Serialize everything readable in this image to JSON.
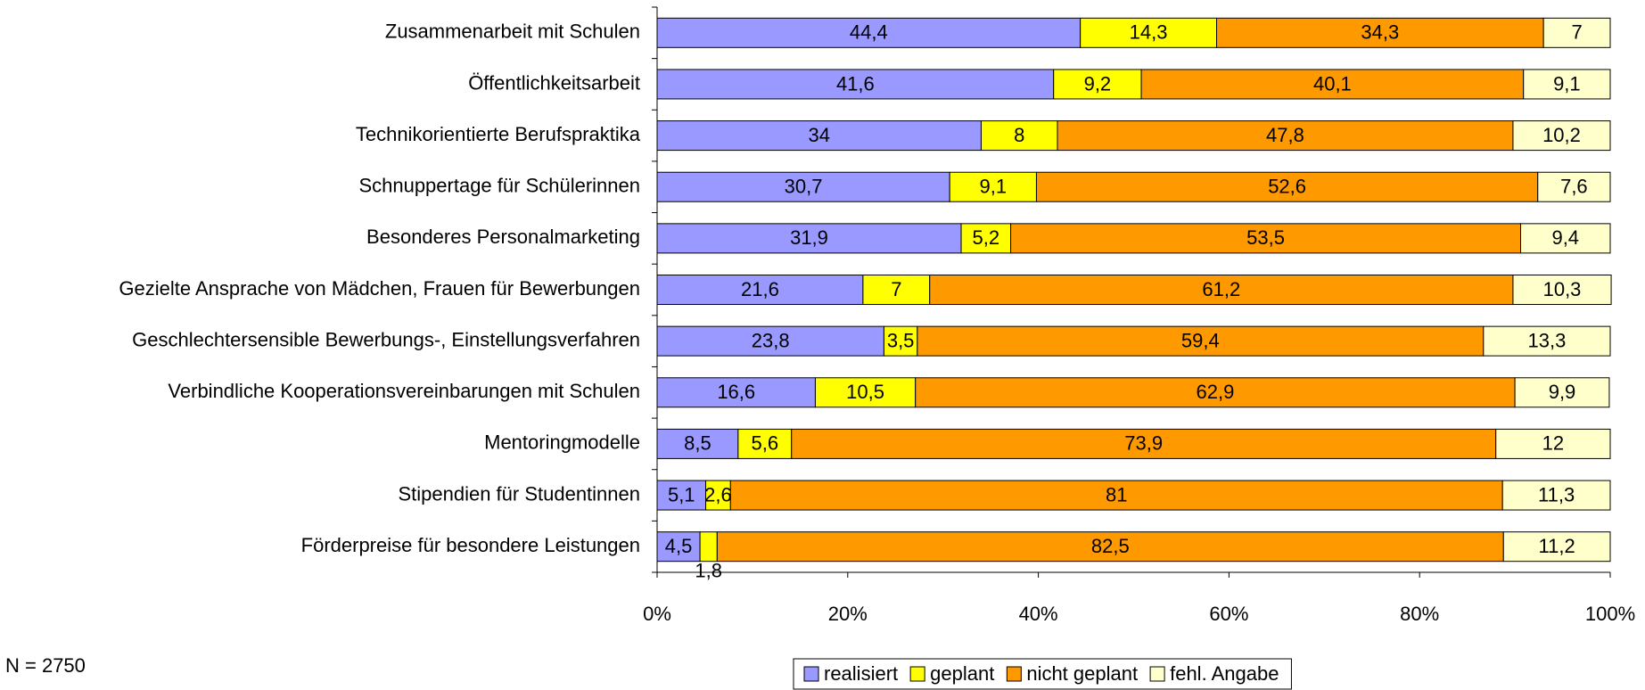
{
  "chart_data": {
    "type": "stacked_bar_horizontal",
    "categories": [
      "Zusammenarbeit mit Schulen",
      "Öffentlichkeitsarbeit",
      "Technikorientierte Berufspraktika",
      "Schnuppertage für Schülerinnen",
      "Besonderes Personalmarketing",
      "Gezielte Ansprache von Mädchen, Frauen für Bewerbungen",
      "Geschlechtersensible Bewerbungs-, Einstellungsverfahren",
      "Verbindliche Kooperationsvereinbarungen mit Schulen",
      "Mentoringmodelle",
      "Stipendien für Studentinnen",
      "Förderpreise für besondere Leistungen"
    ],
    "series": [
      {
        "name": "realisiert",
        "color": "#9999ff",
        "values": [
          44.4,
          41.6,
          34,
          30.7,
          31.9,
          21.6,
          23.8,
          16.6,
          8.5,
          5.1,
          4.5
        ],
        "value_labels": [
          "44,4",
          "41,6",
          "34",
          "30,7",
          "31,9",
          "21,6",
          "23,8",
          "16,6",
          "8,5",
          "5,1",
          "4,5"
        ]
      },
      {
        "name": "geplant",
        "color": "#ffff00",
        "values": [
          14.3,
          9.2,
          8,
          9.1,
          5.2,
          7,
          3.5,
          10.5,
          5.6,
          2.6,
          1.8
        ],
        "value_labels": [
          "14,3",
          "9,2",
          "8",
          "9,1",
          "5,2",
          "7",
          "3,5",
          "10,5",
          "5,6",
          "2,6",
          "1,8"
        ]
      },
      {
        "name": "nicht geplant",
        "color": "#ff9900",
        "values": [
          34.3,
          40.1,
          47.8,
          52.6,
          53.5,
          61.2,
          59.4,
          62.9,
          73.9,
          81,
          82.5
        ],
        "value_labels": [
          "34,3",
          "40,1",
          "47,8",
          "52,6",
          "53,5",
          "61,2",
          "59,4",
          "62,9",
          "73,9",
          "81",
          "82,5"
        ]
      },
      {
        "name": "fehl. Angabe",
        "color": "#ffffcc",
        "values": [
          7,
          9.1,
          10.2,
          7.6,
          9.4,
          10.3,
          13.3,
          9.9,
          12,
          11.3,
          11.2
        ],
        "value_labels": [
          "7",
          "9,1",
          "10,2",
          "7,6",
          "9,4",
          "10,3",
          "13,3",
          "9,9",
          "12",
          "11,3",
          "11,2"
        ]
      }
    ],
    "xlim": [
      0,
      100
    ],
    "xticks": [
      {
        "value": 0,
        "label": "0%"
      },
      {
        "value": 20,
        "label": "20%"
      },
      {
        "value": 40,
        "label": "40%"
      },
      {
        "value": 60,
        "label": "60%"
      },
      {
        "value": 80,
        "label": "80%"
      },
      {
        "value": 100,
        "label": "100%"
      }
    ],
    "legend": "bottom",
    "note": "N = 2750"
  }
}
